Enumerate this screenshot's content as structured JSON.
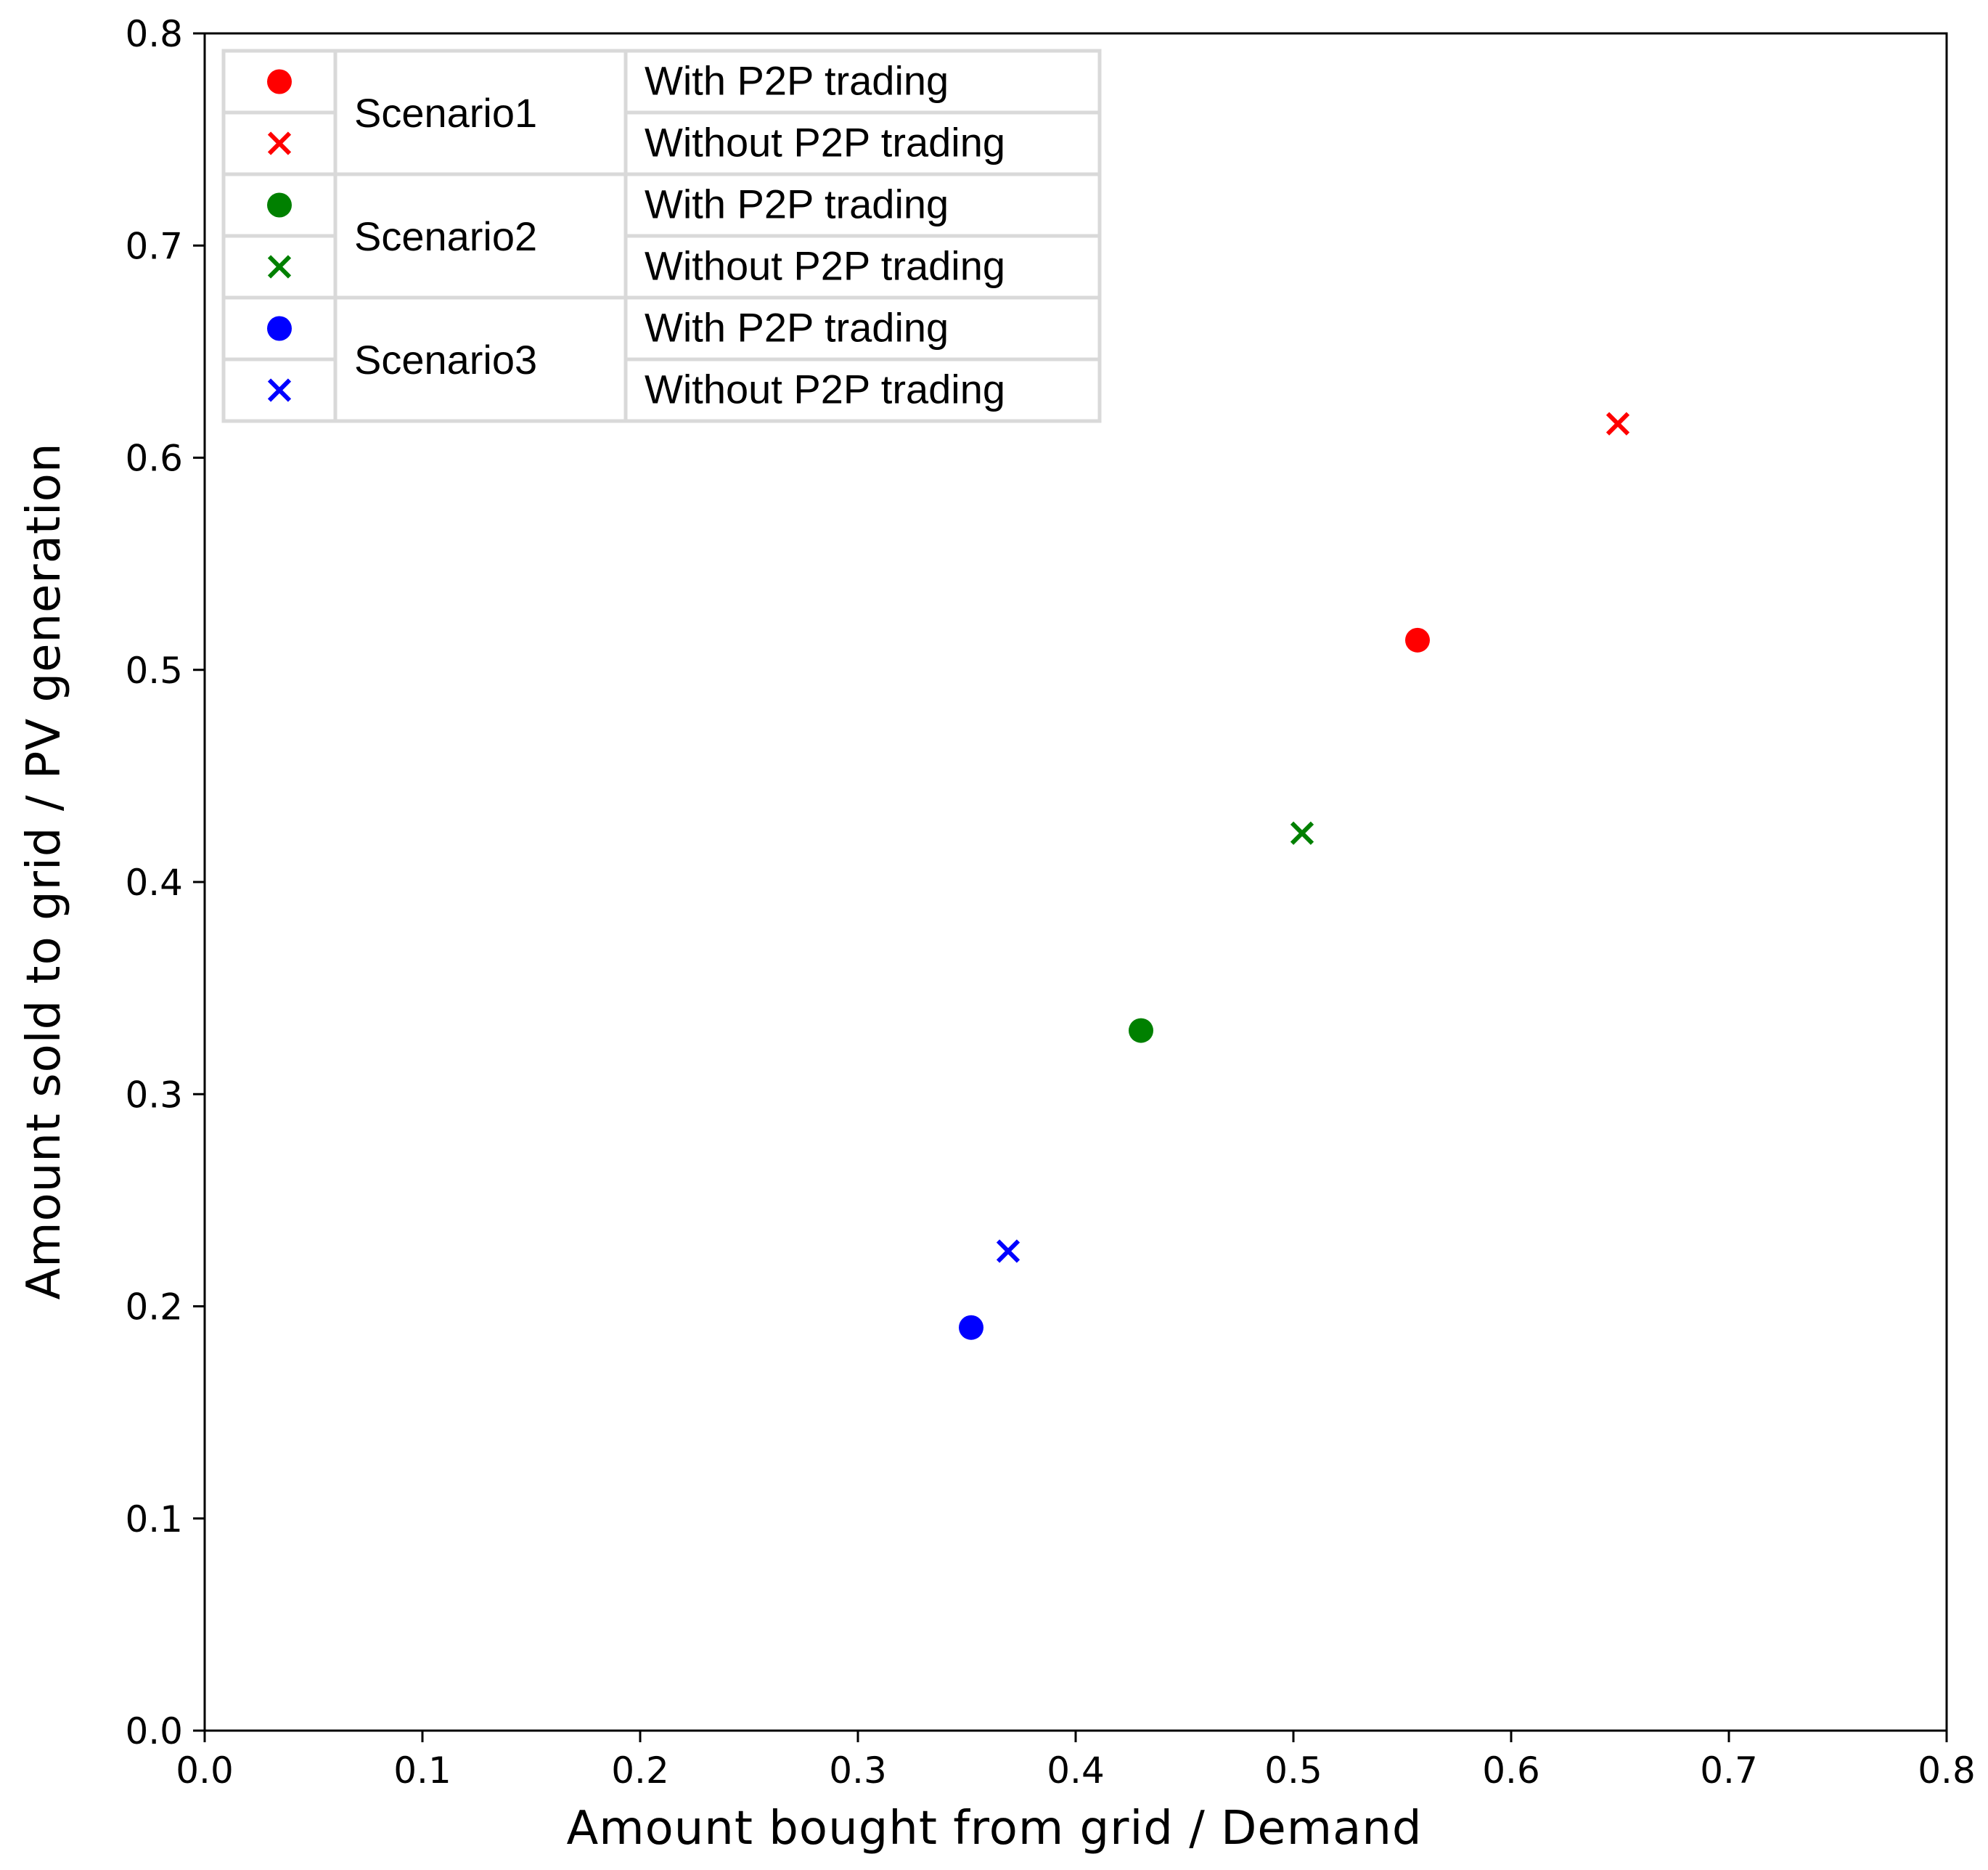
{
  "chart_data": {
    "type": "scatter",
    "title": "",
    "xlabel": "Amount bought from grid / Demand",
    "ylabel": "Amount sold to grid / PV generation",
    "xlim": [
      0.0,
      0.8
    ],
    "ylim": [
      0.0,
      0.8
    ],
    "xticks": [
      "0.0",
      "0.1",
      "0.2",
      "0.3",
      "0.4",
      "0.5",
      "0.6",
      "0.7",
      "0.8"
    ],
    "yticks": [
      "0.0",
      "0.1",
      "0.2",
      "0.3",
      "0.4",
      "0.5",
      "0.6",
      "0.7",
      "0.8"
    ],
    "grid": false,
    "legend_position": "top-left",
    "series": [
      {
        "scenario": "Scenario1",
        "name": "With P2P trading",
        "marker": "circle",
        "color": "#ff0000",
        "x": 0.557,
        "y": 0.514
      },
      {
        "scenario": "Scenario1",
        "name": "Without P2P trading",
        "marker": "x",
        "color": "#ff0000",
        "x": 0.649,
        "y": 0.616
      },
      {
        "scenario": "Scenario2",
        "name": "With P2P trading",
        "marker": "circle",
        "color": "#008000",
        "x": 0.43,
        "y": 0.33
      },
      {
        "scenario": "Scenario2",
        "name": "Without P2P trading",
        "marker": "x",
        "color": "#008000",
        "x": 0.504,
        "y": 0.423
      },
      {
        "scenario": "Scenario3",
        "name": "With P2P trading",
        "marker": "circle",
        "color": "#0000ff",
        "x": 0.352,
        "y": 0.19
      },
      {
        "scenario": "Scenario3",
        "name": "Without P2P trading",
        "marker": "x",
        "color": "#0000ff",
        "x": 0.369,
        "y": 0.226
      }
    ],
    "legend_groups": [
      "Scenario1",
      "Scenario2",
      "Scenario3"
    ]
  }
}
